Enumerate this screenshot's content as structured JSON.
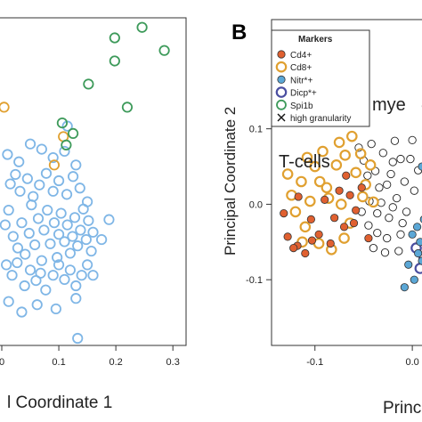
{
  "colors": {
    "blue": "#7fb6e6",
    "orange": "#e0a030",
    "green": "#3d9a5a",
    "red": "#e06030",
    "teal_fill": "#5ba7d6",
    "navy": "#4a4ea0",
    "black": "#222222"
  },
  "chart_data": [
    {
      "type": "scatter",
      "panel": "A",
      "xlabel": "l Coordinate 1",
      "ylabel": "",
      "xticks": [
        "0",
        "0.1",
        "0.2",
        "0.3"
      ],
      "xlim": [
        0.0,
        0.32
      ],
      "ylim": [
        -0.16,
        0.14
      ],
      "grid": false,
      "series": [
        {
          "color_key": "blue",
          "points": [
            [
              0.006,
              -0.052
            ],
            [
              0.012,
              -0.038
            ],
            [
              0.02,
              -0.063
            ],
            [
              0.028,
              -0.074
            ],
            [
              0.035,
              -0.05
            ],
            [
              0.041,
              -0.08
            ],
            [
              0.048,
              -0.06
            ],
            [
              0.052,
              -0.033
            ],
            [
              0.058,
              -0.071
            ],
            [
              0.064,
              -0.046
            ],
            [
              0.07,
              -0.086
            ],
            [
              0.074,
              -0.057
            ],
            [
              0.08,
              -0.038
            ],
            [
              0.085,
              -0.07
            ],
            [
              0.092,
              -0.05
            ],
            [
              0.097,
              -0.083
            ],
            [
              0.1,
              -0.061
            ],
            [
              0.104,
              -0.041
            ],
            [
              0.11,
              -0.068
            ],
            [
              0.115,
              -0.052
            ],
            [
              0.12,
              -0.079
            ],
            [
              0.124,
              -0.063
            ],
            [
              0.128,
              -0.045
            ],
            [
              0.133,
              -0.072
            ],
            [
              0.138,
              -0.057
            ],
            [
              0.143,
              -0.037
            ],
            [
              0.148,
              -0.066
            ],
            [
              0.152,
              -0.048
            ],
            [
              0.157,
              -0.077
            ],
            [
              0.16,
              -0.059
            ],
            [
              0.008,
              -0.09
            ],
            [
              0.018,
              -0.1
            ],
            [
              0.027,
              -0.088
            ],
            [
              0.04,
              -0.11
            ],
            [
              0.05,
              -0.095
            ],
            [
              0.06,
              -0.105
            ],
            [
              0.068,
              -0.098
            ],
            [
              0.077,
              -0.114
            ],
            [
              0.09,
              -0.1
            ],
            [
              0.1,
              -0.09
            ],
            [
              0.11,
              -0.104
            ],
            [
              0.12,
              -0.095
            ],
            [
              0.13,
              -0.11
            ],
            [
              0.14,
              -0.1
            ],
            [
              0.15,
              -0.09
            ],
            [
              0.015,
              -0.013
            ],
            [
              0.024,
              -0.004
            ],
            [
              0.032,
              -0.02
            ],
            [
              0.045,
              -0.008
            ],
            [
              0.055,
              -0.025
            ],
            [
              0.066,
              -0.014
            ],
            [
              0.078,
              -0.003
            ],
            [
              0.09,
              -0.02
            ],
            [
              0.1,
              -0.01
            ],
            [
              0.114,
              -0.023
            ],
            [
              0.125,
              -0.006
            ],
            [
              0.137,
              -0.017
            ],
            [
              0.15,
              -0.03
            ],
            [
              0.01,
              0.015
            ],
            [
              0.03,
              0.008
            ],
            [
              0.05,
              0.025
            ],
            [
              0.07,
              0.02
            ],
            [
              0.09,
              0.012
            ],
            [
              0.11,
              0.018
            ],
            [
              0.13,
              0.005
            ],
            [
              0.012,
              -0.125
            ],
            [
              0.035,
              -0.135
            ],
            [
              0.062,
              -0.128
            ],
            [
              0.095,
              -0.132
            ],
            [
              0.13,
              -0.122
            ],
            [
              0.16,
              -0.1
            ],
            [
              0.175,
              -0.066
            ],
            [
              0.188,
              -0.047
            ],
            [
              0.115,
              0.042
            ],
            [
              0.133,
              -0.16
            ]
          ]
        },
        {
          "color_key": "orange",
          "points": [
            [
              0.004,
              0.06
            ],
            [
              0.108,
              0.032
            ],
            [
              0.092,
              0.005
            ]
          ]
        },
        {
          "color_key": "green",
          "points": [
            [
              0.198,
              0.126
            ],
            [
              0.246,
              0.136
            ],
            [
              0.285,
              0.114
            ],
            [
              0.198,
              0.104
            ],
            [
              0.152,
              0.082
            ],
            [
              0.22,
              0.06
            ],
            [
              0.106,
              0.045
            ],
            [
              0.125,
              0.035
            ],
            [
              0.113,
              0.024
            ]
          ]
        }
      ]
    },
    {
      "type": "scatter",
      "panel": "B",
      "panel_label": "B",
      "xlabel": "Princi",
      "ylabel": "Principal Coordinate 2",
      "xticks": [
        "-0.1",
        "0.0"
      ],
      "yticks": [
        "-0.1",
        "0.0",
        "0.1"
      ],
      "xlim": [
        -0.14,
        0.02
      ],
      "ylim": [
        -0.18,
        0.24
      ],
      "grid": false,
      "annotations": [
        "T-cells",
        "mye"
      ],
      "legend": {
        "title": "Markers",
        "placement": "top-left",
        "entries": [
          "Cd4+",
          "Cd8+",
          "Nitr*+",
          "Dicp*+",
          "Spi1b",
          "high granularity"
        ]
      },
      "series": [
        {
          "name": "Cd4+",
          "color_key": "red",
          "points": [
            [
              -0.132,
              -0.012
            ],
            [
              -0.128,
              -0.043
            ],
            [
              -0.118,
              -0.055
            ],
            [
              -0.104,
              -0.02
            ],
            [
              -0.096,
              -0.04
            ],
            [
              -0.09,
              0.006
            ],
            [
              -0.08,
              -0.018
            ],
            [
              -0.07,
              -0.03
            ],
            [
              -0.064,
              0.012
            ],
            [
              -0.058,
              -0.008
            ],
            [
              -0.052,
              0.022
            ],
            [
              -0.045,
              -0.045
            ],
            [
              -0.117,
              0.01
            ],
            [
              -0.103,
              -0.048
            ],
            [
              -0.084,
              -0.052
            ],
            [
              -0.068,
              0.038
            ],
            [
              -0.11,
              -0.065
            ],
            [
              -0.122,
              -0.058
            ],
            [
              -0.075,
              0.018
            ],
            [
              -0.06,
              -0.025
            ]
          ]
        },
        {
          "name": "Cd8+",
          "color_key": "orange",
          "points": [
            [
              -0.124,
              0.012
            ],
            [
              -0.12,
              -0.01
            ],
            [
              -0.114,
              0.03
            ],
            [
              -0.11,
              -0.03
            ],
            [
              -0.105,
              0.004
            ],
            [
              -0.1,
              0.05
            ],
            [
              -0.096,
              -0.052
            ],
            [
              -0.092,
              0.07
            ],
            [
              -0.088,
              0.022
            ],
            [
              -0.083,
              -0.06
            ],
            [
              -0.078,
              0.052
            ],
            [
              -0.073,
              0.0
            ],
            [
              -0.069,
              0.065
            ],
            [
              -0.064,
              -0.025
            ],
            [
              -0.058,
              0.042
            ],
            [
              -0.053,
              0.067
            ],
            [
              -0.048,
              0.026
            ],
            [
              -0.043,
              0.052
            ],
            [
              -0.113,
              -0.05
            ],
            [
              -0.128,
              0.04
            ],
            [
              -0.075,
              0.082
            ],
            [
              -0.086,
              0.008
            ],
            [
              -0.062,
              0.09
            ],
            [
              -0.051,
              0.01
            ],
            [
              -0.07,
              -0.045
            ],
            [
              -0.095,
              0.03
            ],
            [
              -0.108,
              0.062
            ],
            [
              -0.04,
              0.003
            ]
          ]
        },
        {
          "name": "Nitr*+",
          "color_key": "teal_fill",
          "points": [
            [
              0.0,
              -0.04
            ],
            [
              0.008,
              -0.05
            ],
            [
              0.012,
              -0.02
            ],
            [
              -0.004,
              -0.08
            ],
            [
              0.002,
              -0.1
            ],
            [
              0.01,
              -0.075
            ],
            [
              0.015,
              -0.09
            ],
            [
              -0.008,
              -0.11
            ],
            [
              0.006,
              -0.065
            ],
            [
              0.014,
              0.13
            ],
            [
              0.01,
              0.05
            ],
            [
              0.015,
              -0.12
            ],
            [
              0.005,
              -0.03
            ]
          ]
        },
        {
          "name": "Dicp*+",
          "color_key": "navy",
          "points": [
            [
              0.004,
              -0.058
            ],
            [
              0.012,
              -0.07
            ],
            [
              0.008,
              -0.085
            ]
          ]
        },
        {
          "name": "high granularity",
          "color_key": "black",
          "points": [
            [
              -0.038,
              0.044
            ],
            [
              -0.026,
              0.026
            ],
            [
              -0.032,
              0.002
            ],
            [
              -0.024,
              -0.018
            ],
            [
              -0.036,
              -0.038
            ],
            [
              -0.02,
              0.056
            ],
            [
              -0.016,
              0.008
            ],
            [
              -0.012,
              -0.04
            ],
            [
              -0.008,
              0.03
            ],
            [
              -0.006,
              -0.01
            ],
            [
              -0.002,
              0.06
            ],
            [
              0.002,
              0.018
            ],
            [
              -0.045,
              -0.028
            ],
            [
              -0.028,
              -0.064
            ],
            [
              -0.042,
              0.08
            ],
            [
              -0.018,
              0.084
            ],
            [
              -0.05,
              0.058
            ],
            [
              -0.034,
              0.022
            ],
            [
              -0.014,
              -0.062
            ],
            [
              -0.044,
              0.004
            ],
            [
              -0.022,
              0.04
            ],
            [
              -0.03,
              0.068
            ],
            [
              0.006,
              0.045
            ],
            [
              -0.01,
              -0.025
            ],
            [
              -0.046,
              0.038
            ],
            [
              -0.052,
              -0.01
            ],
            [
              -0.02,
              -0.004
            ],
            [
              -0.04,
              -0.058
            ],
            [
              0.0,
              0.085
            ],
            [
              -0.026,
              -0.045
            ],
            [
              -0.055,
              0.075
            ],
            [
              -0.036,
              -0.012
            ],
            [
              -0.012,
              0.06
            ]
          ]
        }
      ]
    }
  ]
}
